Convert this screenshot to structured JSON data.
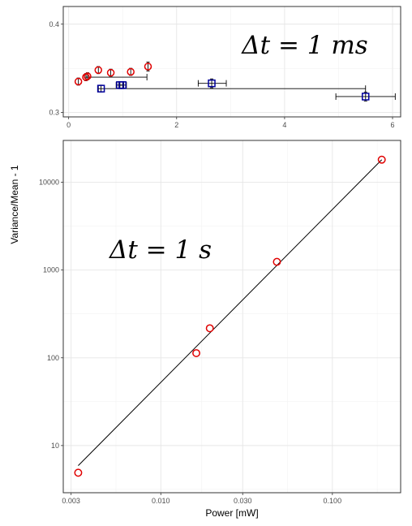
{
  "shared": {
    "ylabel": "Variance/Mean - 1"
  },
  "chart_data": [
    {
      "type": "scatter",
      "title": "",
      "xlabel": "",
      "ylabel": "Variance/Mean - 1",
      "annotation": "Δt = 1 ms",
      "xlim": [
        -0.1,
        6.15
      ],
      "ylim": [
        0.295,
        0.42
      ],
      "xscale": "linear",
      "yscale": "linear",
      "grid": true,
      "x_ticks": [
        0,
        2,
        4,
        6
      ],
      "x_tick_labels": [
        "0",
        "2",
        "4",
        "6"
      ],
      "y_ticks": [
        0.3,
        0.4
      ],
      "y_tick_labels": [
        "0.3",
        "0.4"
      ],
      "series": [
        {
          "color": "#e00000",
          "marker": "circle",
          "points": [
            {
              "x": 0.18,
              "y": 0.335,
              "xerr": [
                0.18,
                0.18
              ],
              "yerr": [
                0.331,
                0.339
              ]
            },
            {
              "x": 0.32,
              "y": 0.34,
              "xerr": [
                0.32,
                1.45
              ],
              "yerr": [
                0.336,
                0.344
              ]
            },
            {
              "x": 0.35,
              "y": 0.341,
              "xerr": [
                0.35,
                0.35
              ],
              "yerr": [
                0.337,
                0.345
              ]
            },
            {
              "x": 0.55,
              "y": 0.348,
              "xerr": [
                0.55,
                0.55
              ],
              "yerr": [
                0.344,
                0.352
              ]
            },
            {
              "x": 0.78,
              "y": 0.345,
              "xerr": [
                0.78,
                0.78
              ],
              "yerr": [
                0.341,
                0.349
              ]
            },
            {
              "x": 1.15,
              "y": 0.346,
              "xerr": [
                1.15,
                1.15
              ],
              "yerr": [
                0.342,
                0.35
              ]
            },
            {
              "x": 1.47,
              "y": 0.352,
              "xerr": [
                1.47,
                1.47
              ],
              "yerr": [
                0.347,
                0.357
              ]
            }
          ]
        },
        {
          "color": "#00009c",
          "marker": "square",
          "points": [
            {
              "x": 0.6,
              "y": 0.327,
              "xerr": [
                0.55,
                5.5
              ],
              "yerr": [
                0.323,
                0.331
              ]
            },
            {
              "x": 0.95,
              "y": 0.331,
              "xerr": [
                0.88,
                1.02
              ],
              "yerr": [
                0.327,
                0.335
              ]
            },
            {
              "x": 1.0,
              "y": 0.331,
              "xerr": [
                0.93,
                1.07
              ],
              "yerr": [
                0.327,
                0.335
              ]
            },
            {
              "x": 2.65,
              "y": 0.333,
              "xerr": [
                2.4,
                2.92
              ],
              "yerr": [
                0.328,
                0.338
              ]
            },
            {
              "x": 5.5,
              "y": 0.318,
              "xerr": [
                4.95,
                6.05
              ],
              "yerr": [
                0.313,
                0.323
              ]
            }
          ]
        }
      ]
    },
    {
      "type": "scatter",
      "title": "",
      "xlabel": "Power [mW]",
      "ylabel": "Variance/Mean - 1",
      "annotation": "Δt = 1 s",
      "xscale": "log10",
      "yscale": "log10",
      "xlim": [
        0.0027,
        0.25
      ],
      "ylim": [
        2.9,
        30000
      ],
      "grid": true,
      "x_ticks": [
        0.003,
        0.01,
        0.03,
        0.1
      ],
      "x_tick_labels": [
        "0.003",
        "0.010",
        "0.030",
        "0.100"
      ],
      "y_ticks": [
        10,
        100,
        1000,
        10000
      ],
      "y_tick_labels": [
        "10",
        "100",
        "1000",
        "10000"
      ],
      "points": [
        {
          "x": 0.0033,
          "y": 4.9
        },
        {
          "x": 0.0161,
          "y": 113
        },
        {
          "x": 0.0193,
          "y": 217
        },
        {
          "x": 0.0475,
          "y": 1240
        },
        {
          "x": 0.194,
          "y": 18100
        }
      ],
      "fit_line": {
        "x": [
          0.0033,
          0.194
        ],
        "y": [
          5.9,
          18100
        ]
      },
      "marker_color": "#e00000",
      "line_color": "#000000"
    }
  ]
}
